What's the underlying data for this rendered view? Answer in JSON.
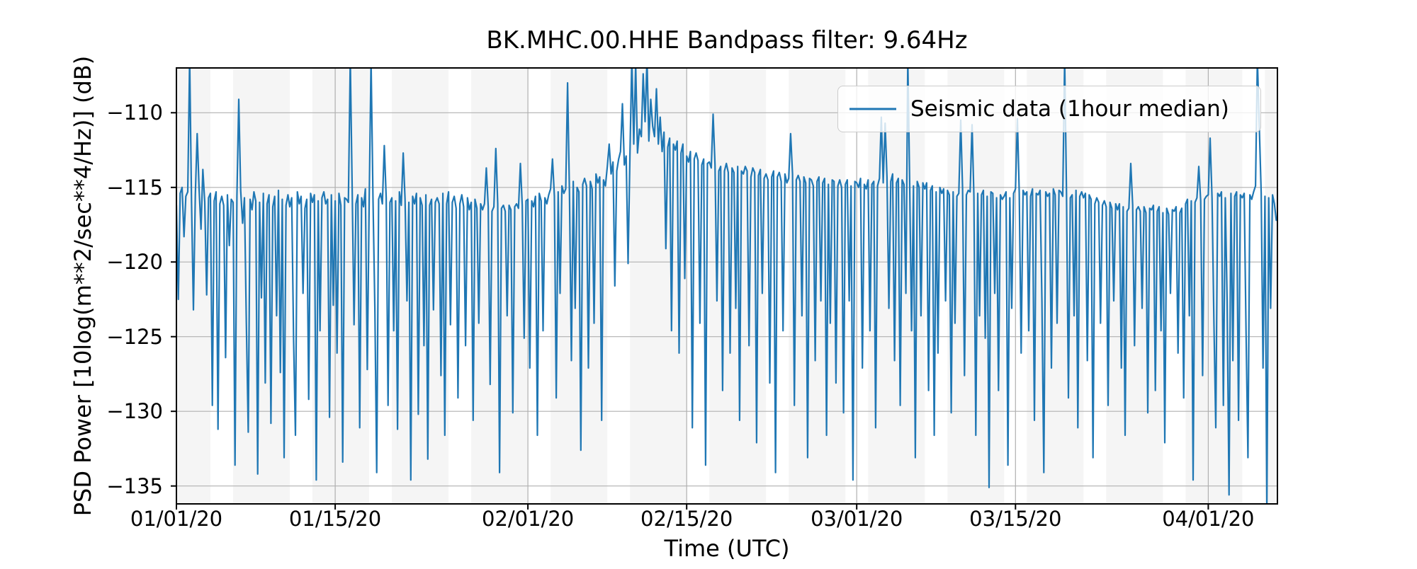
{
  "chart_data": {
    "type": "line",
    "title": "BK.MHC.00.HHE Bandpass filter: 9.64Hz",
    "xlabel": "Time (UTC)",
    "ylabel": "PSD Power [10log(m**2/sec**4/Hz)] (dB)",
    "legend": {
      "position": "upper right",
      "entries": [
        {
          "label": "Seismic data (1hour median)",
          "color": "#1f77b4"
        }
      ]
    },
    "axis": {
      "xlim_days": [
        0,
        97.1
      ],
      "x_origin_date": "01/01/20",
      "ylim": [
        -136.2,
        -107.0
      ],
      "grid": true,
      "grid_color": "#b0b0b0"
    },
    "x_ticks": [
      {
        "day": 0,
        "label": "01/01/20"
      },
      {
        "day": 14,
        "label": "01/15/20"
      },
      {
        "day": 31,
        "label": "02/01/20"
      },
      {
        "day": 45,
        "label": "02/15/20"
      },
      {
        "day": 60,
        "label": "03/01/20"
      },
      {
        "day": 74,
        "label": "03/15/20"
      },
      {
        "day": 91,
        "label": "04/01/20"
      }
    ],
    "y_ticks": [
      {
        "value": -110,
        "label": "−110"
      },
      {
        "value": -115,
        "label": "−115"
      },
      {
        "value": -120,
        "label": "−120"
      },
      {
        "value": -125,
        "label": "−125"
      },
      {
        "value": -130,
        "label": "−130"
      },
      {
        "value": -135,
        "label": "−135"
      }
    ],
    "weekday_shading": {
      "color": "#f5f5f5",
      "note": "gray bands span Mon 00:00 to Sat 00:00 (weekdays); weekends are white",
      "bands_days": [
        [
          0,
          3
        ],
        [
          5,
          10
        ],
        [
          12,
          17
        ],
        [
          19,
          24
        ],
        [
          26,
          31
        ],
        [
          33,
          38
        ],
        [
          40,
          45
        ],
        [
          47,
          52
        ],
        [
          54,
          59
        ],
        [
          61,
          66
        ],
        [
          68,
          73
        ],
        [
          75,
          80
        ],
        [
          82,
          87
        ],
        [
          89,
          94
        ],
        [
          96,
          97.1
        ]
      ]
    },
    "series": [
      {
        "name": "Seismic data (1hour median)",
        "color": "#1f77b4",
        "line_width": 2.2,
        "start_day": 0,
        "sample_interval_hours": 4,
        "y": [
          -116.2,
          -122.5,
          -115.4,
          -115.0,
          -118.3,
          -115.6,
          -115.3,
          -106.3,
          -115.9,
          -123.2,
          -115.5,
          -111.4,
          -115.1,
          -117.8,
          -113.8,
          -116.0,
          -122.2,
          -115.7,
          -115.4,
          -129.6,
          -115.9,
          -115.3,
          -131.2,
          -116.1,
          -115.6,
          -116.2,
          -126.4,
          -115.5,
          -118.9,
          -115.8,
          -116.0,
          -133.6,
          -115.6,
          -109.1,
          -115.2,
          -117.4,
          -115.7,
          -124.1,
          -131.4,
          -115.8,
          -116.5,
          -115.3,
          -115.9,
          -134.2,
          -116.0,
          -122.4,
          -115.4,
          -128.1,
          -116.1,
          -115.5,
          -130.8,
          -116.3,
          -115.6,
          -123.6,
          -115.2,
          -127.4,
          -115.8,
          -133.1,
          -116.2,
          -115.5,
          -116.3,
          -115.7,
          -125.2,
          -131.6,
          -115.3,
          -116.1,
          -115.6,
          -122.1,
          -116.4,
          -115.8,
          -129.2,
          -115.4,
          -116.0,
          -115.5,
          -134.6,
          -115.9,
          -124.6,
          -115.7,
          -115.3,
          -116.1,
          -115.8,
          -130.4,
          -115.5,
          -122.9,
          -115.9,
          -126.1,
          -115.4,
          -116.2,
          -133.4,
          -115.7,
          -115.8,
          -116.0,
          -106.4,
          -115.2,
          -124.2,
          -116.1,
          -115.5,
          -131.1,
          -115.7,
          -116.3,
          -115.1,
          -127.2,
          -115.9,
          -106.4,
          -115.6,
          -123.1,
          -134.1,
          -115.8,
          -115.4,
          -116.1,
          -112.2,
          -115.7,
          -129.6,
          -116.0,
          -115.7,
          -124.6,
          -115.9,
          -131.2,
          -115.3,
          -116.2,
          -112.7,
          -115.8,
          -122.6,
          -116.0,
          -134.6,
          -115.6,
          -116.1,
          -115.4,
          -130.2,
          -115.7,
          -116.2,
          -125.6,
          -115.5,
          -133.2,
          -116.2,
          -115.8,
          -123.2,
          -116.0,
          -115.7,
          -116.1,
          -127.6,
          -115.4,
          -131.6,
          -116.1,
          -115.3,
          -124.2,
          -116.0,
          -115.6,
          -116.4,
          -129.1,
          -116.1,
          -115.5,
          -116.3,
          -125.6,
          -115.7,
          -116.5,
          -116.0,
          -130.6,
          -115.8,
          -116.4,
          -124.1,
          -116.1,
          -116.5,
          -116.1,
          -113.7,
          -116.3,
          -128.2,
          -116.6,
          -116.3,
          -112.4,
          -116.1,
          -134.1,
          -116.4,
          -116.2,
          -116.6,
          -123.6,
          -116.2,
          -116.5,
          -130.1,
          -116.3,
          -116.1,
          -116.4,
          -113.4,
          -116.2,
          -125.1,
          -115.9,
          -115.8,
          -127.1,
          -115.9,
          -116.3,
          -115.6,
          -131.6,
          -115.4,
          -115.9,
          -124.6,
          -115.7,
          -116.1,
          -115.5,
          -115.1,
          -113.1,
          -115.6,
          -129.1,
          -115.3,
          -122.1,
          -114.9,
          -115.4,
          -115.1,
          -108.0,
          -115.5,
          -126.6,
          -114.6,
          -123.1,
          -115.0,
          -115.3,
          -132.6,
          -114.8,
          -114.4,
          -114.9,
          -127.1,
          -114.6,
          -115.1,
          -124.1,
          -114.1,
          -114.7,
          -114.3,
          -130.6,
          -114.5,
          -114.9,
          -113.6,
          -112.1,
          -114.1,
          -113.3,
          -121.6,
          -113.9,
          -113.1,
          -112.6,
          -109.4,
          -113.5,
          -112.9,
          -120.1,
          -112.6,
          -106.4,
          -112.1,
          -106.7,
          -112.7,
          -111.1,
          -111.6,
          -107.4,
          -110.6,
          -106.4,
          -111.9,
          -109.1,
          -110.9,
          -111.6,
          -108.4,
          -112.1,
          -110.3,
          -112.6,
          -111.3,
          -119.1,
          -112.3,
          -111.7,
          -124.6,
          -112.1,
          -112.5,
          -111.9,
          -126.1,
          -112.7,
          -112.1,
          -121.1,
          -112.9,
          -113.3,
          -112.6,
          -131.1,
          -113.1,
          -112.7,
          -113.2,
          -124.1,
          -113.5,
          -113.1,
          -133.6,
          -113.4,
          -113.3,
          -113.7,
          -110.1,
          -113.5,
          -122.6,
          -113.9,
          -113.6,
          -128.6,
          -113.9,
          -113.4,
          -114.0,
          -126.1,
          -113.7,
          -114.0,
          -123.1,
          -113.6,
          -130.6,
          -113.9,
          -114.1,
          -113.6,
          -113.9,
          -125.6,
          -114.3,
          -113.7,
          -114.0,
          -132.1,
          -114.2,
          -113.8,
          -122.1,
          -114.4,
          -114.1,
          -114.5,
          -128.1,
          -114.3,
          -113.9,
          -134.1,
          -114.3,
          -114.0,
          -114.6,
          -124.6,
          -114.1,
          -114.7,
          -114.4,
          -111.4,
          -114.1,
          -129.6,
          -114.5,
          -114.2,
          -114.6,
          -123.6,
          -114.3,
          -114.7,
          -133.1,
          -114.4,
          -114.5,
          -114.9,
          -126.6,
          -114.6,
          -114.3,
          -122.6,
          -114.7,
          -114.4,
          -131.6,
          -114.8,
          -124.1,
          -114.5,
          -114.6,
          -128.1,
          -114.9,
          -114.5,
          -115.0,
          -130.1,
          -114.8,
          -114.5,
          -122.6,
          -114.9,
          -134.6,
          -114.6,
          -114.7,
          -115.0,
          -114.4,
          -127.1,
          -114.8,
          -115.1,
          -114.5,
          -124.6,
          -114.8,
          -114.6,
          -131.1,
          -114.9,
          -114.4,
          -110.3,
          -114.7,
          -110.7,
          -114.3,
          -123.1,
          -114.6,
          -114.1,
          -126.6,
          -114.7,
          -114.4,
          -129.6,
          -114.5,
          -114.8,
          -122.1,
          -106.4,
          -114.6,
          -124.6,
          -114.9,
          -133.1,
          -114.6,
          -115.0,
          -123.6,
          -114.7,
          -115.1,
          -114.7,
          -128.6,
          -115.2,
          -114.9,
          -131.6,
          -115.3,
          -126.1,
          -115.0,
          -115.4,
          -115.1,
          -122.6,
          -115.2,
          -115.5,
          -130.1,
          -115.3,
          -124.1,
          -115.6,
          -115.4,
          -110.5,
          -115.1,
          -127.6,
          -115.5,
          -115.2,
          -115.3,
          -110.8,
          -115.6,
          -131.6,
          -115.4,
          -123.6,
          -115.5,
          -115.2,
          -125.1,
          -115.6,
          -135.1,
          -115.3,
          -115.4,
          -122.1,
          -115.7,
          -128.6,
          -115.5,
          -115.8,
          -115.6,
          -115.3,
          -133.6,
          -115.7,
          -123.1,
          -115.4,
          -115.1,
          -110.4,
          -115.4,
          -126.1,
          -115.2,
          -115.5,
          -115.3,
          -124.6,
          -115.6,
          -115.1,
          -130.6,
          -115.4,
          -115.5,
          -115.2,
          -122.6,
          -134.1,
          -115.3,
          -115.6,
          -115.4,
          -127.1,
          -115.1,
          -115.5,
          -124.1,
          -115.2,
          -115.3,
          -115.6,
          -106.4,
          -115.4,
          -129.1,
          -115.7,
          -115.5,
          -123.6,
          -115.2,
          -131.1,
          -115.6,
          -115.3,
          -115.7,
          -115.4,
          -126.6,
          -115.5,
          -115.8,
          -133.1,
          -116.1,
          -115.7,
          -116.0,
          -124.1,
          -116.2,
          -115.9,
          -116.3,
          -129.6,
          -116.0,
          -116.4,
          -122.6,
          -116.1,
          -116.5,
          -116.1,
          -127.1,
          -116.3,
          -131.6,
          -116.6,
          -116.4,
          -113.4,
          -116.2,
          -125.6,
          -116.5,
          -116.3,
          -116.6,
          -123.1,
          -116.3,
          -116.7,
          -130.1,
          -116.4,
          -116.5,
          -116.2,
          -128.6,
          -116.6,
          -116.3,
          -124.6,
          -116.7,
          -132.1,
          -116.4,
          -116.8,
          -122.1,
          -116.5,
          -116.6,
          -116.3,
          -126.1,
          -116.7,
          -116.4,
          -129.1,
          -116.1,
          -115.8,
          -123.6,
          -115.9,
          -134.6,
          -116.0,
          -115.7,
          -113.6,
          -115.9,
          -127.6,
          -115.8,
          -115.6,
          -115.5,
          -111.7,
          -115.7,
          -124.1,
          -131.1,
          -115.4,
          -115.6,
          -115.3,
          -129.6,
          -115.7,
          -122.6,
          -135.6,
          -115.4,
          -126.6,
          -115.6,
          -115.3,
          -130.6,
          -115.5,
          -115.7,
          -115.4,
          -124.6,
          -133.1,
          -115.5,
          -115.8,
          -115.3,
          -114.9,
          -106.4,
          -110.9,
          -115.4,
          -127.1,
          -115.6,
          -136.6,
          -115.7,
          -123.1,
          -115.5,
          -116.1,
          -117.2
        ]
      }
    ]
  }
}
